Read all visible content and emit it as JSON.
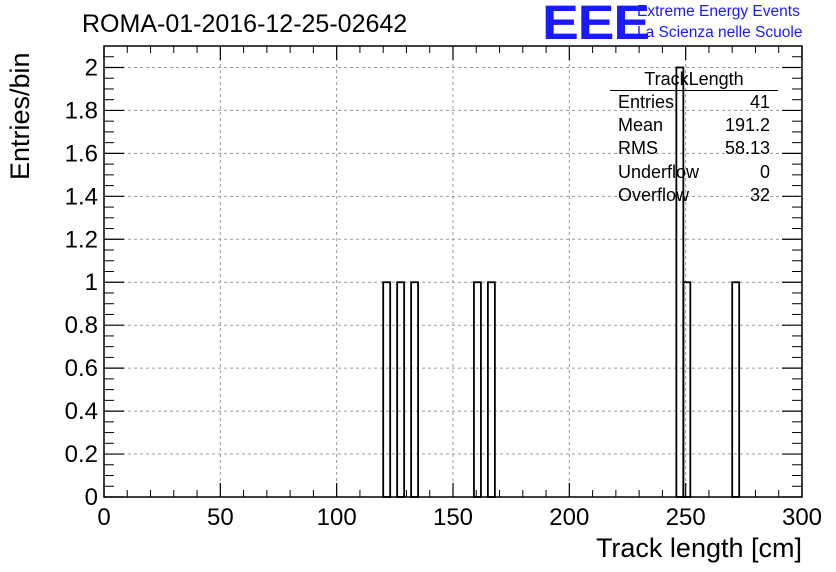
{
  "title": "ROMA-01-2016-12-25-02642",
  "logo": {
    "mark": "EEE",
    "line1": "Extreme Energy Events",
    "line2": "La Scienza nelle Scuole",
    "color": "#1a1aff"
  },
  "stats_box": {
    "name": "TrackLength",
    "rows": [
      {
        "key": "Entries",
        "value": "41"
      },
      {
        "key": "Mean",
        "value": "191.2"
      },
      {
        "key": "RMS",
        "value": "58.13"
      },
      {
        "key": "Underflow",
        "value": "0"
      },
      {
        "key": "Overflow",
        "value": "32"
      }
    ]
  },
  "chart_data": {
    "type": "bar",
    "histogram": true,
    "xlabel": "Track length [cm]",
    "ylabel": "Entries/bin",
    "xlim": [
      0,
      300
    ],
    "ylim": [
      0,
      2.1
    ],
    "bin_width": 3,
    "grid": true,
    "x_ticks": [
      0,
      50,
      100,
      150,
      200,
      250,
      300
    ],
    "y_ticks": [
      0,
      0.2,
      0.4,
      0.6,
      0.8,
      1,
      1.2,
      1.4,
      1.6,
      1.8,
      2
    ],
    "y_tick_labels": [
      "0",
      "0.2",
      "0.4",
      "0.6",
      "0.8",
      "1",
      "1.2",
      "1.4",
      "1.6",
      "1.8",
      "2"
    ],
    "bins": [
      {
        "x": 120,
        "value": 1
      },
      {
        "x": 126,
        "value": 1
      },
      {
        "x": 132,
        "value": 1
      },
      {
        "x": 159,
        "value": 1
      },
      {
        "x": 165,
        "value": 1
      },
      {
        "x": 246,
        "value": 2
      },
      {
        "x": 249,
        "value": 1
      },
      {
        "x": 270,
        "value": 1
      }
    ]
  }
}
